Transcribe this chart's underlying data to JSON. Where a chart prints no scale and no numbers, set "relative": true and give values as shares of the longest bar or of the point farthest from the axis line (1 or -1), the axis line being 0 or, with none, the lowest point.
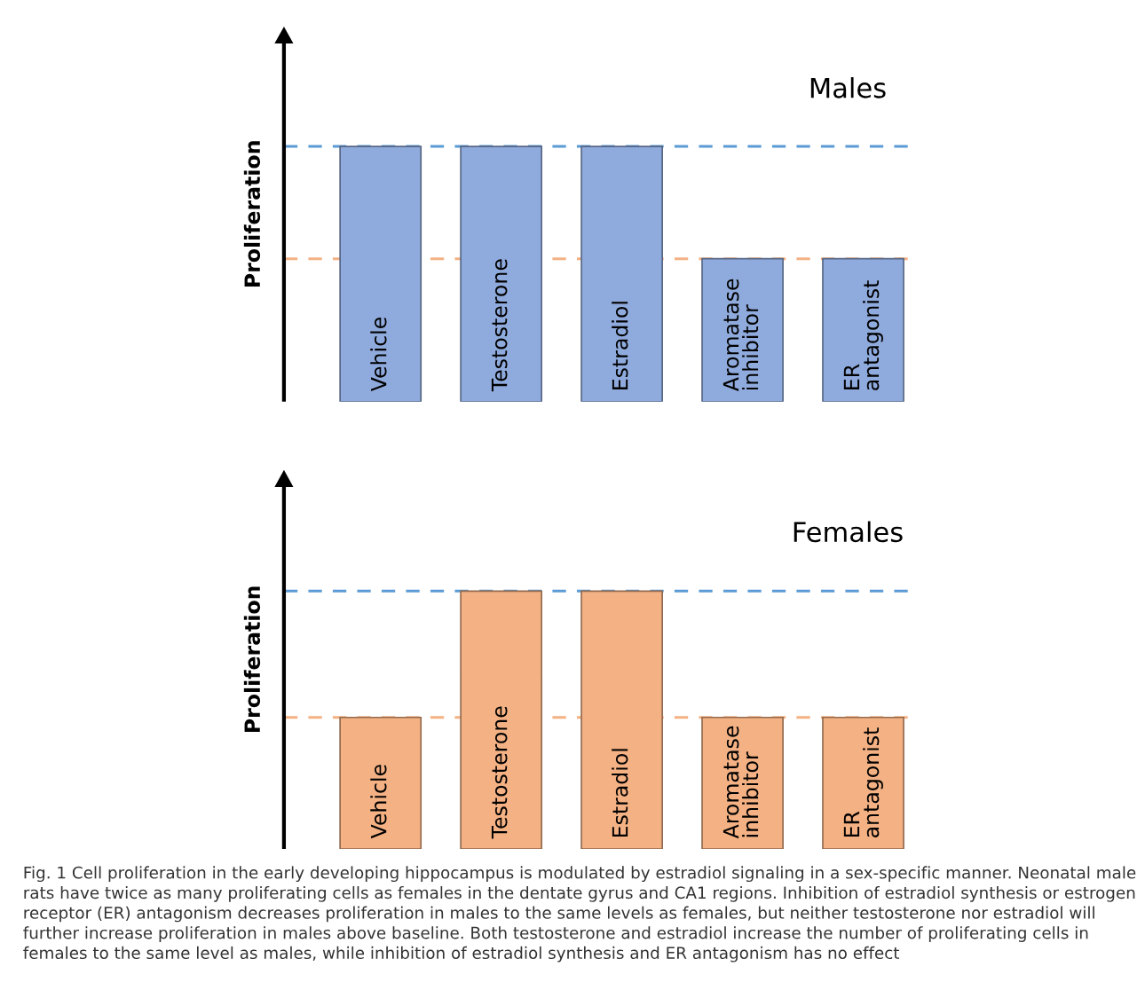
{
  "chart_data": [
    {
      "type": "bar",
      "title": "Males",
      "ylabel": "Proliferation",
      "relative": true,
      "categories": [
        "Vehicle",
        "Testosterone",
        "Estradiol",
        "Aromatase\ninhibitor",
        "ER\nantagonist"
      ],
      "series": [
        {
          "color": "#8faadc",
          "values": [
            1,
            1,
            1,
            0.56,
            0.56
          ]
        }
      ],
      "ref_lines": [
        {
          "axis": "y",
          "value": 1,
          "color": "#5b9bd5",
          "line_style": "dashed"
        },
        {
          "axis": "y",
          "value": 0.56,
          "color": "#f4b183",
          "line_style": "dashed"
        }
      ]
    },
    {
      "type": "bar",
      "title": "Females",
      "ylabel": "Proliferation",
      "relative": true,
      "categories": [
        "Vehicle",
        "Testosterone",
        "Estradiol",
        "Aromatase\ninhibitor",
        "ER\nantagonist"
      ],
      "series": [
        {
          "color": "#f4b183",
          "values": [
            0.51,
            1,
            1,
            0.51,
            0.51
          ]
        }
      ],
      "ref_lines": [
        {
          "axis": "y",
          "value": 1,
          "color": "#5b9bd5",
          "line_style": "dashed"
        },
        {
          "axis": "y",
          "value": 0.51,
          "color": "#f4b183",
          "line_style": "dashed"
        }
      ],
      "annotations": [
        "Fig. 1 Cell proliferation in the early developing hippocampus is modulated by estradiol signaling in a sex-specific manner. Neonatal male rats have twice as many proliferating cells as females in the dentate gyrus and CA1 regions. Inhibition of estradiol synthesis or estrogen receptor (ER) antagonism decreases proliferation in males to the same levels as females, but neither testosterone nor estradiol will further increase proliferation in males above baseline. Both testosterone and estradiol increase the number of proliferating cells in females to the same level as males, while inhibition of estradiol synthesis and ER antagonism has no effect"
      ]
    }
  ]
}
